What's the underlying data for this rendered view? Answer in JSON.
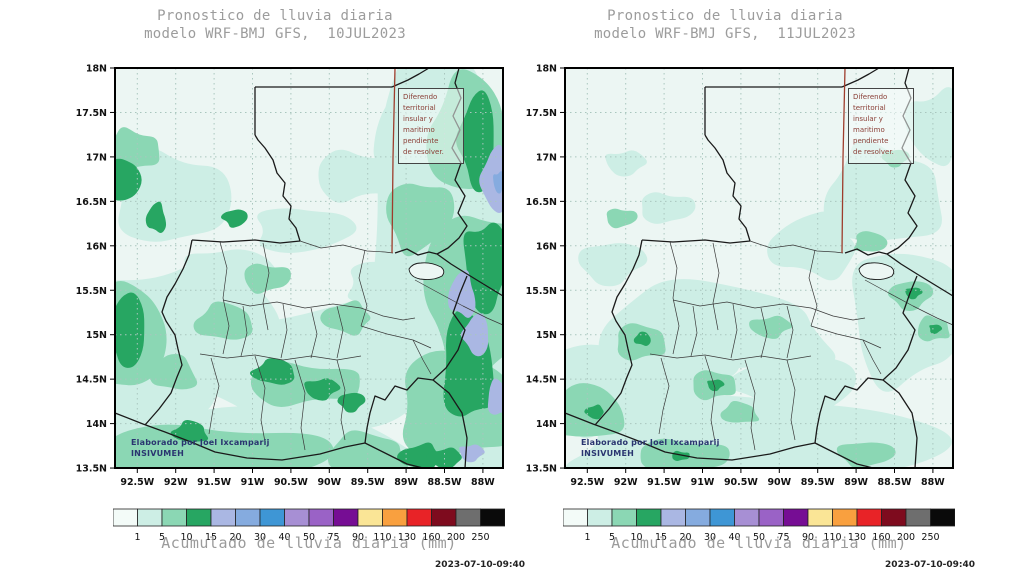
{
  "panels": [
    {
      "title_line1": "Pronostico de lluvia diaria",
      "title_line2": "modelo WRF-BMJ GFS,  10JUL2023",
      "disclaimer": "Diferendo\nterritorial\ninsular y\nmaritimo\npendiente\nde resolver.",
      "credit": "Elaborado  por Joel Ixcamparij\nINSIVUMEH",
      "timestamp": "2023-07-10-09:40"
    },
    {
      "title_line1": "Pronostico de lluvia diaria",
      "title_line2": "modelo WRF-BMJ GFS,  11JUL2023",
      "disclaimer": "Diferendo\nterritorial\ninsular y\nmaritimo\npendiente\nde resolver.",
      "credit": "Elaborado  por Joel Ixcamparij\nINSIVUMEH",
      "timestamp": "2023-07-10-09:40"
    }
  ],
  "axes": {
    "lat_labels": [
      "18N",
      "17.5N",
      "17N",
      "16.5N",
      "16N",
      "15.5N",
      "15N",
      "14.5N",
      "14N",
      "13.5N"
    ],
    "lon_labels": [
      "92.5W",
      "92W",
      "91.5W",
      "91W",
      "90.5W",
      "90W",
      "89.5W",
      "89W",
      "88.5W",
      "88W"
    ]
  },
  "legend": {
    "caption": "Acumulado de lluvia diaria (mm)",
    "tick_labels": [
      "1",
      "5",
      "10",
      "15",
      "20",
      "30",
      "40",
      "50",
      "75",
      "90",
      "110",
      "130",
      "160",
      "200",
      "250"
    ],
    "colors": [
      "#f3fbf8",
      "#cdeee5",
      "#8bd7b4",
      "#27a662",
      "#aab7e3",
      "#85abdf",
      "#3e96d5",
      "#a78fd4",
      "#9a62c6",
      "#760d94",
      "#fae596",
      "#f9a03f",
      "#e82327",
      "#7e0b1e",
      "#6e6e6e",
      "#0a0a0a"
    ]
  },
  "map_colors": {
    "background": "#ecf6f3",
    "outline": "#1a1a1a",
    "department": "#3a3a3a",
    "grid": "#a9c6be",
    "claim_line": "#9e3c2c",
    "frame": "#000000",
    "disclaimer_text": "#8b4038",
    "credit_text": "#2a3570"
  }
}
